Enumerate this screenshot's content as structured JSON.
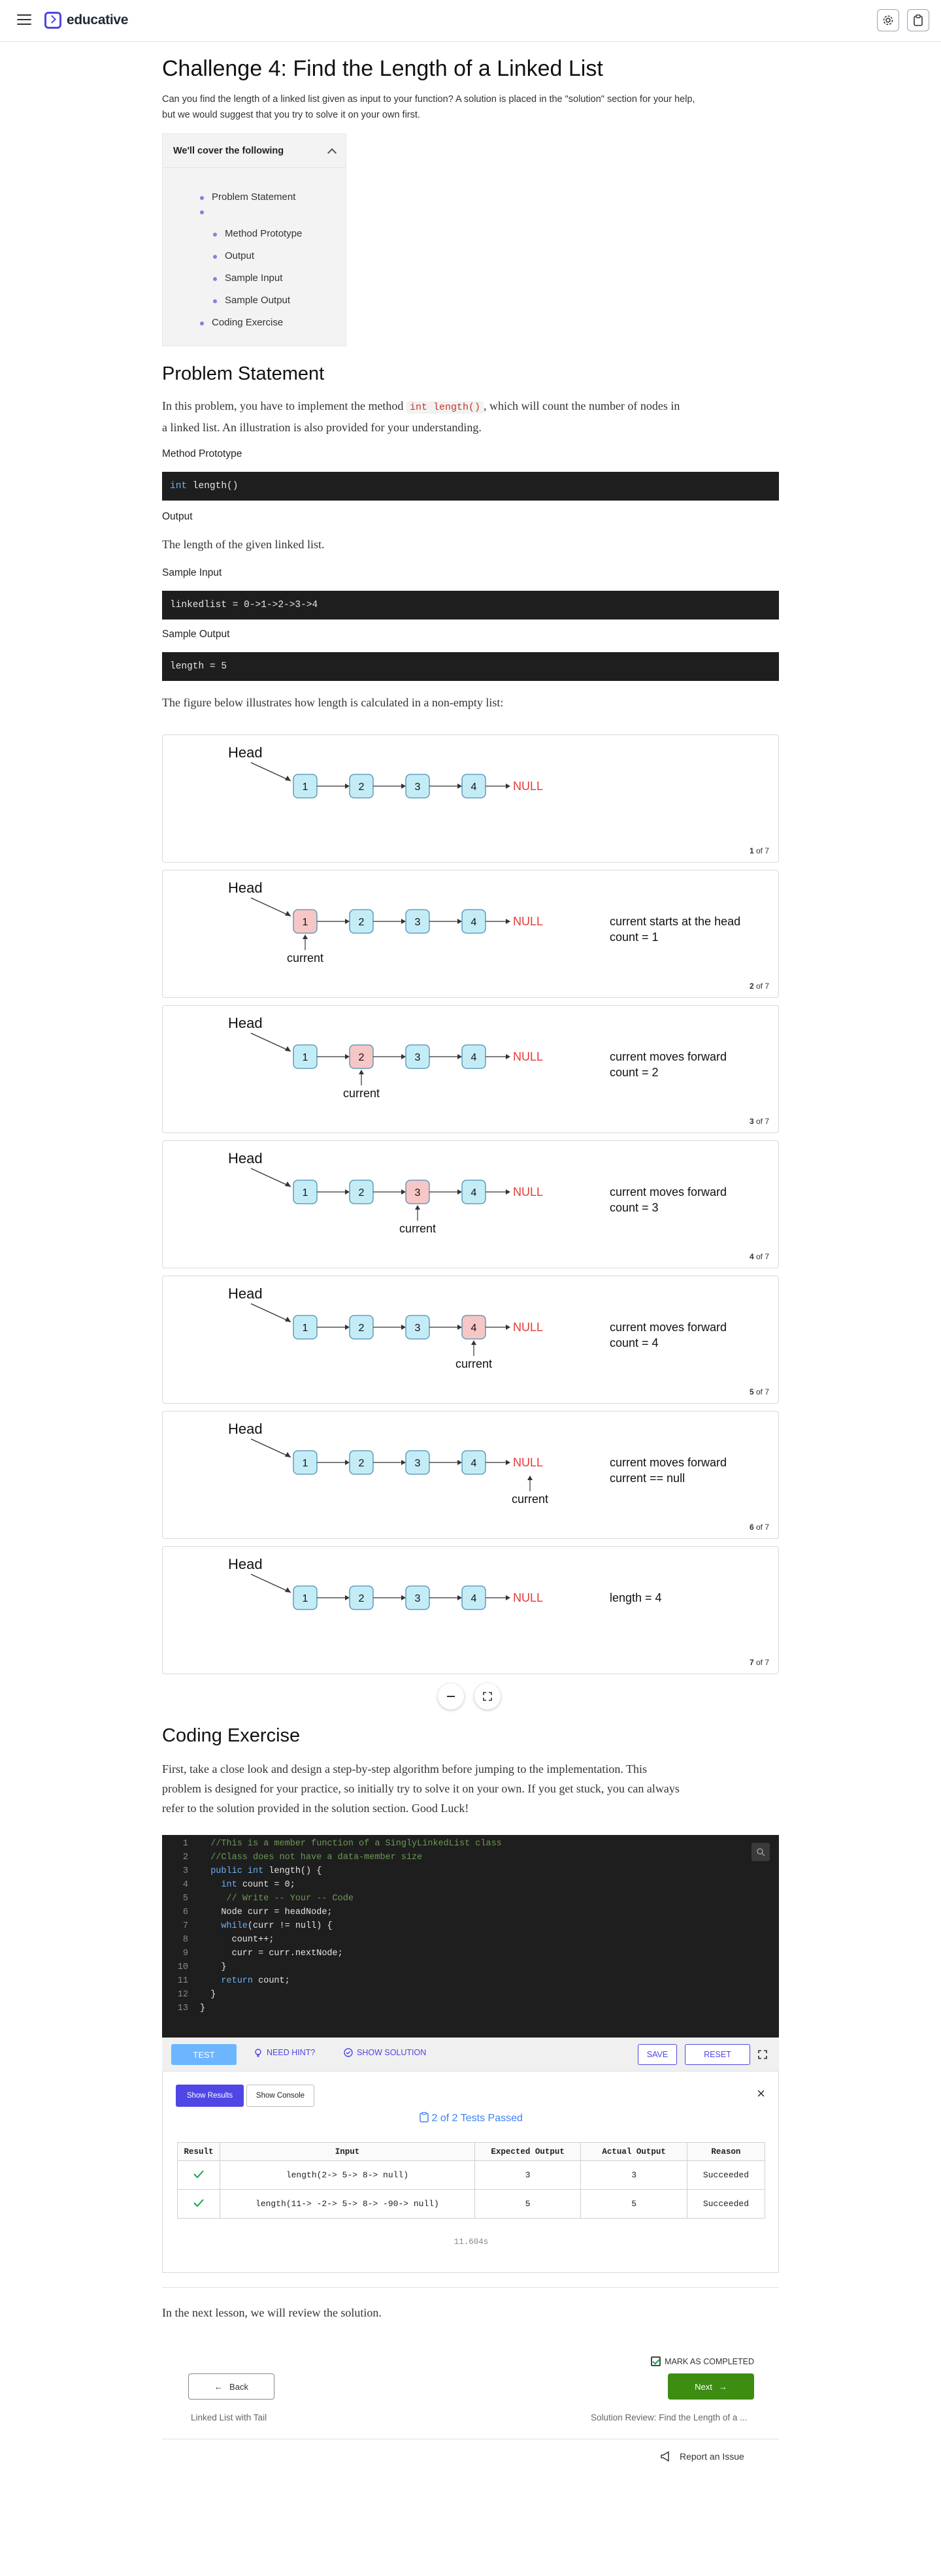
{
  "header": {
    "logo_text": "educative",
    "menu_icon": "hamburger-icon",
    "settings_icon": "gear-icon",
    "clipboard_icon": "clipboard-icon"
  },
  "lesson": {
    "title": "Challenge 4: Find the Length of a Linked List",
    "intro_line1": "Can you find the length of a linked list given as input to your function? A solution is placed in the \"solution\" section for your help,",
    "intro_line2": "but we would suggest that you try to solve it on your own first."
  },
  "toc": {
    "heading": "We'll cover the following",
    "items": [
      "Problem Statement",
      "Method Prototype",
      "Output",
      "Sample Input",
      "Sample Output",
      "Coding Exercise"
    ]
  },
  "problem": {
    "heading": "Problem Statement",
    "p1_before": "In this problem, you have to implement the method ",
    "p1_code": "int length()",
    "p1_after": ", which will count the number of nodes in",
    "p1_line2": "a linked list. An illustration is also provided for your understanding.",
    "method_label": "Method Prototype",
    "method_kw": "int",
    "method_rest": " length()",
    "output_label": "Output",
    "output_text": "The length of the given linked list.",
    "sample_input_label": "Sample Input",
    "sample_input_code": "linkedlist = 0->1->2->3->4",
    "sample_output_label": "Sample Output",
    "sample_output_code": "length = 5",
    "figure_intro": "The figure below illustrates how length is calculated in a non-empty list:"
  },
  "slides": {
    "head_label": "Head",
    "null_label": "NULL",
    "current_label": "current",
    "node_labels": [
      "1",
      "2",
      "3",
      "4"
    ],
    "total": "7",
    "of_word": "of",
    "items": [
      {
        "num": "1",
        "current": "none",
        "line1": "",
        "line2": ""
      },
      {
        "num": "2",
        "current": "1",
        "line1": "current starts at the head",
        "line2": "count = 1"
      },
      {
        "num": "3",
        "current": "2",
        "line1": "current moves forward",
        "line2": "count = 2"
      },
      {
        "num": "4",
        "current": "3",
        "line1": "current moves forward",
        "line2": "count = 3"
      },
      {
        "num": "5",
        "current": "4",
        "line1": "current moves forward",
        "line2": "count = 4"
      },
      {
        "num": "6",
        "current": "null",
        "line1": "current moves forward",
        "line2": "current == null"
      },
      {
        "num": "7",
        "current": "none",
        "line1": "length = 4",
        "line2": ""
      }
    ],
    "controls": {
      "collapse_icon": "minus-icon",
      "fullscreen_icon": "expand-icon"
    }
  },
  "exercise": {
    "heading": "Coding Exercise",
    "p_line1": "First, take a close look and design a step-by-step algorithm before jumping to the implementation. This",
    "p_line2": "problem is designed for your practice, so initially try to solve it on your own. If you get stuck, you can always",
    "p_line3": "refer to the solution provided in the solution section. Good Luck!",
    "code_lines": [
      {
        "n": "1",
        "indent": "  ",
        "text": "//This is a member function of a SinglyLinkedList class",
        "type": "comment"
      },
      {
        "n": "2",
        "indent": "  ",
        "text": "//Class does not have a data-member size",
        "type": "comment"
      },
      {
        "n": "3",
        "indent": "  ",
        "kw": "public int",
        "text": " length() {",
        "type": "kw"
      },
      {
        "n": "4",
        "indent": "    ",
        "kw": "int",
        "text": " count = 0;",
        "type": "kw"
      },
      {
        "n": "5",
        "indent": "     ",
        "text": "// Write -- Your -- Code",
        "type": "comment"
      },
      {
        "n": "6",
        "indent": "    ",
        "text": "Node curr = headNode;",
        "type": "plain"
      },
      {
        "n": "7",
        "indent": "    ",
        "kw": "while",
        "text": "(curr != null) {",
        "type": "kw"
      },
      {
        "n": "8",
        "indent": "      ",
        "text": "count++;",
        "type": "plain"
      },
      {
        "n": "9",
        "indent": "      ",
        "text": "curr = curr.nextNode;",
        "type": "plain"
      },
      {
        "n": "10",
        "indent": "    ",
        "text": "}",
        "type": "plain"
      },
      {
        "n": "11",
        "indent": "    ",
        "kw": "return",
        "text": " count;",
        "type": "kw"
      },
      {
        "n": "12",
        "indent": "  ",
        "text": "}",
        "type": "plain"
      },
      {
        "n": "13",
        "indent": "",
        "text": "}",
        "type": "plain"
      }
    ],
    "toolbar": {
      "test": "TEST",
      "hint": "NEED HINT?",
      "solution": "SHOW SOLUTION",
      "save": "SAVE",
      "reset": "RESET"
    },
    "results": {
      "show_results": "Show Results",
      "show_console": "Show Console",
      "passed": "2 of 2 Tests Passed",
      "headers": [
        "Result",
        "Input",
        "Expected Output",
        "Actual Output",
        "Reason"
      ],
      "rows": [
        {
          "input": "length(2-> 5-> 8-> null)",
          "expected": "3",
          "actual": "3",
          "reason": "Succeeded"
        },
        {
          "input": "length(11-> -2-> 5-> 8-> -90-> null)",
          "expected": "5",
          "actual": "5",
          "reason": "Succeeded"
        }
      ],
      "elapsed": "11.604s"
    }
  },
  "footer": {
    "next_lesson_text": "In the next lesson, we will review the solution.",
    "mark_completed": "MARK AS COMPLETED",
    "back": "Back",
    "next": "Next",
    "prev_title": "Linked List with Tail",
    "next_title": "Solution Review: Find the Length of a ...",
    "report": "Report an Issue"
  },
  "colors": {
    "brand": "#4f46e5",
    "node_fill": "#c4ecf7",
    "node_current": "#f7c6c6",
    "null_red": "#e53935",
    "next_green": "#3e8d13"
  }
}
